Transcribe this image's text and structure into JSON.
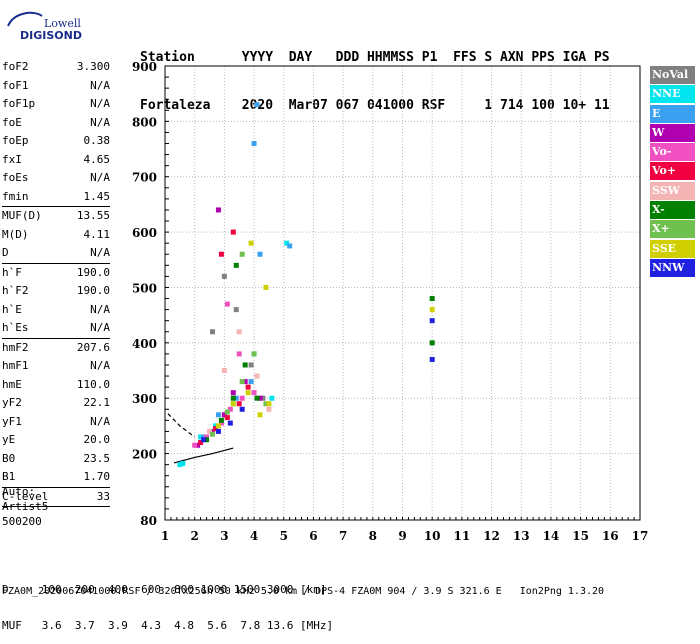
{
  "logo": {
    "brand": "Lowell",
    "product": "DIGISONDE"
  },
  "header": {
    "labels": [
      "Station",
      "YYYY",
      "DAY",
      "DDD",
      "HHMMSS",
      "P1",
      "FFS",
      "S",
      "AXN",
      "PPS",
      "IGA",
      "PS"
    ],
    "values": [
      "Fortaleza",
      "2020",
      "Mar07",
      "067",
      "041000",
      "RSF",
      "",
      "1",
      "714",
      "100",
      "10+",
      "11"
    ]
  },
  "params": [
    {
      "name": "foF2",
      "value": "3.300"
    },
    {
      "name": "foF1",
      "value": "N/A"
    },
    {
      "name": "foF1p",
      "value": "N/A"
    },
    {
      "name": "foE",
      "value": "N/A"
    },
    {
      "name": "foEp",
      "value": "0.38"
    },
    {
      "name": "fxI",
      "value": "4.65"
    },
    {
      "name": "foEs",
      "value": "N/A"
    },
    {
      "name": "fmin",
      "value": "1.45"
    },
    {
      "name": "MUF(D)",
      "value": "13.55"
    },
    {
      "name": "M(D)",
      "value": "4.11"
    },
    {
      "name": "D",
      "value": "N/A"
    },
    {
      "name": "h`F",
      "value": "190.0"
    },
    {
      "name": "h`F2",
      "value": "190.0"
    },
    {
      "name": "h`E",
      "value": "N/A"
    },
    {
      "name": "h`Es",
      "value": "N/A"
    },
    {
      "name": "hmF2",
      "value": "207.6"
    },
    {
      "name": "hmF1",
      "value": "N/A"
    },
    {
      "name": "hmE",
      "value": "110.0"
    },
    {
      "name": "yF2",
      "value": "22.1"
    },
    {
      "name": "yF1",
      "value": "N/A"
    },
    {
      "name": "yE",
      "value": "20.0"
    },
    {
      "name": "B0",
      "value": "23.5"
    },
    {
      "name": "B1",
      "value": "1.70"
    },
    {
      "name": "C-level",
      "value": "33"
    }
  ],
  "auto": {
    "line1": "Auto:",
    "line2": "Artist5",
    "line3": "500200"
  },
  "legend": [
    {
      "label": "NoVal",
      "color": "#808080"
    },
    {
      "label": "NNE",
      "color": "#00e5ee"
    },
    {
      "label": "E",
      "color": "#3aa0f0"
    },
    {
      "label": "W",
      "color": "#b000b0"
    },
    {
      "label": "Vo-",
      "color": "#f050c0"
    },
    {
      "label": "Vo+",
      "color": "#f00040"
    },
    {
      "label": "SSW",
      "color": "#f4b4b4"
    },
    {
      "label": "X-",
      "color": "#008000"
    },
    {
      "label": "X+",
      "color": "#70c050"
    },
    {
      "label": "SSE",
      "color": "#d0d000"
    },
    {
      "label": "NNW",
      "color": "#2020e0"
    }
  ],
  "bottom": {
    "d_line": "D     100  200  400  600  800 1000 1500 3000 [km]",
    "muf_line": "MUF   3.6  3.7  3.9  4.3  4.8  5.6  7.8 13.6 [MHz]"
  },
  "footer": "FZA0M_2020067041000.RSF / 320fx256h 50 kHz 5.0 km / DPS-4 FZA0M 904 / 3.9 S 321.6 E   Ion2Png 1.3.20",
  "chart_data": {
    "type": "scatter",
    "xlim": [
      1,
      17
    ],
    "ylim": [
      80,
      900
    ],
    "xticks": [
      "1",
      "2",
      "3",
      "4",
      "5",
      "6",
      "7",
      "8",
      "9",
      "10",
      "11",
      "12",
      "13",
      "14",
      "15",
      "16",
      "17"
    ],
    "yticks": [
      "80",
      "200",
      "300",
      "400",
      "500",
      "600",
      "700",
      "800",
      "900"
    ],
    "series": [
      {
        "name": "NoVal",
        "color": "#808080",
        "points": [
          [
            2.6,
            420
          ],
          [
            3.0,
            520
          ],
          [
            3.4,
            460
          ],
          [
            3.9,
            360
          ],
          [
            4.3,
            300
          ]
        ]
      },
      {
        "name": "NNE",
        "color": "#00e5ee",
        "points": [
          [
            1.5,
            180
          ],
          [
            2.2,
            230
          ],
          [
            2.7,
            250
          ],
          [
            3.3,
            290
          ],
          [
            4.0,
            380
          ],
          [
            4.6,
            300
          ],
          [
            5.1,
            580
          ],
          [
            1.6,
            182
          ]
        ]
      },
      {
        "name": "E",
        "color": "#3aa0f0",
        "points": [
          [
            2.3,
            230
          ],
          [
            2.8,
            270
          ],
          [
            3.4,
            300
          ],
          [
            3.9,
            330
          ],
          [
            4.2,
            560
          ],
          [
            4.1,
            830
          ],
          [
            4.0,
            760
          ],
          [
            5.2,
            575
          ]
        ]
      },
      {
        "name": "W",
        "color": "#b000b0",
        "points": [
          [
            2.1,
            215
          ],
          [
            2.6,
            240
          ],
          [
            3.0,
            270
          ],
          [
            3.3,
            310
          ],
          [
            3.7,
            330
          ],
          [
            4.2,
            300
          ],
          [
            2.8,
            640
          ]
        ]
      },
      {
        "name": "Vo-",
        "color": "#f050c0",
        "points": [
          [
            2.0,
            215
          ],
          [
            2.4,
            230
          ],
          [
            2.9,
            255
          ],
          [
            3.2,
            280
          ],
          [
            3.6,
            300
          ],
          [
            4.0,
            310
          ],
          [
            3.1,
            470
          ],
          [
            3.5,
            380
          ]
        ]
      },
      {
        "name": "Vo+",
        "color": "#f00040",
        "points": [
          [
            2.2,
            220
          ],
          [
            2.7,
            245
          ],
          [
            3.1,
            265
          ],
          [
            3.5,
            290
          ],
          [
            3.8,
            320
          ],
          [
            2.9,
            560
          ],
          [
            3.3,
            600
          ]
        ]
      },
      {
        "name": "SSW",
        "color": "#f4b4b4",
        "points": [
          [
            2.5,
            240
          ],
          [
            3.0,
            350
          ],
          [
            3.5,
            420
          ],
          [
            4.1,
            340
          ],
          [
            4.5,
            280
          ]
        ]
      },
      {
        "name": "X-",
        "color": "#008000",
        "points": [
          [
            2.4,
            225
          ],
          [
            2.9,
            260
          ],
          [
            3.3,
            300
          ],
          [
            3.7,
            360
          ],
          [
            4.1,
            300
          ],
          [
            3.4,
            540
          ],
          [
            10,
            480
          ],
          [
            10,
            400
          ]
        ]
      },
      {
        "name": "X+",
        "color": "#70c050",
        "points": [
          [
            2.6,
            235
          ],
          [
            3.1,
            275
          ],
          [
            3.6,
            330
          ],
          [
            4.0,
            380
          ],
          [
            4.4,
            290
          ],
          [
            3.6,
            560
          ]
        ]
      },
      {
        "name": "SSE",
        "color": "#d0d000",
        "points": [
          [
            2.8,
            250
          ],
          [
            3.3,
            290
          ],
          [
            3.8,
            310
          ],
          [
            4.2,
            270
          ],
          [
            4.5,
            290
          ],
          [
            3.9,
            580
          ],
          [
            4.4,
            500
          ],
          [
            10,
            460
          ]
        ]
      },
      {
        "name": "NNW",
        "color": "#2020e0",
        "points": [
          [
            2.3,
            225
          ],
          [
            2.8,
            240
          ],
          [
            3.2,
            255
          ],
          [
            3.6,
            280
          ],
          [
            10,
            440
          ],
          [
            10,
            370
          ]
        ]
      }
    ],
    "trace_lines": [
      {
        "color": "#000000",
        "points": [
          [
            1.3,
            183
          ],
          [
            2.0,
            193
          ],
          [
            2.6,
            200
          ],
          [
            3.3,
            210
          ]
        ]
      },
      {
        "color": "#000000",
        "points": [
          [
            1.1,
            272
          ],
          [
            1.5,
            250
          ],
          [
            2.0,
            230
          ]
        ],
        "dashed": true
      }
    ]
  }
}
